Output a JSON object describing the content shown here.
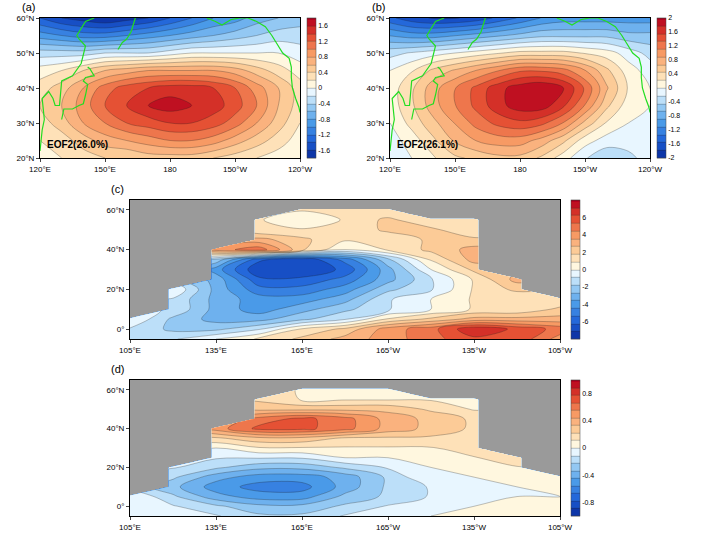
{
  "chart_data": [
    {
      "type": "contour",
      "title": "(a)",
      "annotations": [
        "EOF2(26.0%)"
      ],
      "x": [
        120,
        130,
        140,
        150,
        160,
        170,
        180,
        190,
        200,
        210,
        220,
        230,
        240
      ],
      "y": [
        20,
        25,
        30,
        35,
        40,
        45,
        50,
        55,
        60
      ],
      "z": [
        [
          0.1,
          0.2,
          0.3,
          0.4,
          0.4,
          0.5,
          0.5,
          0.5,
          0.4,
          0.3,
          0.2,
          0.1,
          0.0
        ],
        [
          0.2,
          0.3,
          0.5,
          0.7,
          0.8,
          0.9,
          1.0,
          1.0,
          0.9,
          0.7,
          0.5,
          0.3,
          0.1
        ],
        [
          0.3,
          0.5,
          0.8,
          1.0,
          1.2,
          1.3,
          1.4,
          1.4,
          1.3,
          1.1,
          0.8,
          0.5,
          0.2
        ],
        [
          0.4,
          0.6,
          0.9,
          1.2,
          1.4,
          1.6,
          1.7,
          1.6,
          1.5,
          1.3,
          1.0,
          0.6,
          0.3
        ],
        [
          0.3,
          0.5,
          0.8,
          1.1,
          1.3,
          1.4,
          1.5,
          1.5,
          1.4,
          1.2,
          0.9,
          0.6,
          0.3
        ],
        [
          0.1,
          0.2,
          0.4,
          0.6,
          0.7,
          0.8,
          0.8,
          0.8,
          0.8,
          0.7,
          0.5,
          0.3,
          0.1
        ],
        [
          -0.3,
          -0.3,
          -0.3,
          -0.2,
          -0.2,
          -0.2,
          -0.1,
          0.0,
          0.0,
          0.0,
          0.0,
          0.0,
          -0.1
        ],
        [
          -0.9,
          -1.0,
          -1.1,
          -1.1,
          -1.0,
          -0.9,
          -0.8,
          -0.7,
          -0.6,
          -0.5,
          -0.4,
          -0.3,
          -0.3
        ],
        [
          -1.4,
          -1.6,
          -1.7,
          -1.8,
          -1.7,
          -1.6,
          -1.4,
          -1.2,
          -1.0,
          -0.9,
          -0.7,
          -0.6,
          -0.5
        ]
      ],
      "xlim": [
        120,
        240
      ],
      "xticks": [
        {
          "value": 120,
          "label": "120°E"
        },
        {
          "value": 150,
          "label": "150°E"
        },
        {
          "value": 180,
          "label": "180"
        },
        {
          "value": 210,
          "label": "150°W"
        },
        {
          "value": 240,
          "label": "120°W"
        }
      ],
      "ylim": [
        20,
        60
      ],
      "yticks": [
        {
          "value": 20,
          "label": "20°N"
        },
        {
          "value": 30,
          "label": "30°N"
        },
        {
          "value": 40,
          "label": "40°N"
        },
        {
          "value": 50,
          "label": "50°N"
        },
        {
          "value": 60,
          "label": "60°N"
        }
      ],
      "zlim": [
        -1.8,
        1.8
      ],
      "zticks": [
        -1.6,
        -1.2,
        -0.8,
        -0.4,
        0,
        0.4,
        0.8,
        1.2,
        1.6
      ]
    },
    {
      "type": "contour",
      "title": "(b)",
      "annotations": [
        "EOF2(26.1%)"
      ],
      "x": [
        120,
        130,
        140,
        150,
        160,
        170,
        180,
        190,
        200,
        210,
        220,
        230,
        240
      ],
      "y": [
        20,
        25,
        30,
        35,
        40,
        45,
        50,
        55,
        60
      ],
      "z": [
        [
          -0.2,
          0.0,
          0.2,
          0.4,
          0.5,
          0.6,
          0.6,
          0.4,
          0.1,
          -0.2,
          -0.4,
          -0.3,
          -0.1
        ],
        [
          -0.1,
          0.1,
          0.4,
          0.7,
          0.9,
          1.0,
          1.0,
          0.8,
          0.5,
          0.1,
          -0.1,
          -0.1,
          0.0
        ],
        [
          0.0,
          0.3,
          0.6,
          0.9,
          1.2,
          1.4,
          1.5,
          1.4,
          1.1,
          0.6,
          0.2,
          0.0,
          0.0
        ],
        [
          0.1,
          0.4,
          0.8,
          1.1,
          1.4,
          1.7,
          1.9,
          1.9,
          1.6,
          1.1,
          0.5,
          0.1,
          0.0
        ],
        [
          0.1,
          0.4,
          0.8,
          1.1,
          1.4,
          1.7,
          1.9,
          2.0,
          1.8,
          1.3,
          0.7,
          0.2,
          0.0
        ],
        [
          0.0,
          0.2,
          0.5,
          0.7,
          0.9,
          1.1,
          1.3,
          1.3,
          1.2,
          0.9,
          0.5,
          0.1,
          -0.1
        ],
        [
          -0.3,
          -0.2,
          -0.1,
          0.0,
          0.1,
          0.2,
          0.3,
          0.3,
          0.3,
          0.2,
          0.1,
          -0.1,
          -0.3
        ],
        [
          -0.9,
          -1.0,
          -1.0,
          -0.9,
          -0.8,
          -0.7,
          -0.6,
          -0.5,
          -0.5,
          -0.5,
          -0.5,
          -0.6,
          -0.6
        ],
        [
          -1.5,
          -1.7,
          -1.8,
          -1.8,
          -1.7,
          -1.5,
          -1.3,
          -1.1,
          -1.0,
          -1.0,
          -1.0,
          -1.0,
          -1.0
        ]
      ],
      "xlim": [
        120,
        240
      ],
      "xticks": [
        {
          "value": 120,
          "label": "120°E"
        },
        {
          "value": 150,
          "label": "150°E"
        },
        {
          "value": 180,
          "label": "180"
        },
        {
          "value": 210,
          "label": "150°W"
        },
        {
          "value": 240,
          "label": "120°W"
        }
      ],
      "ylim": [
        20,
        60
      ],
      "yticks": [
        {
          "value": 20,
          "label": "20°N"
        },
        {
          "value": 30,
          "label": "30°N"
        },
        {
          "value": 40,
          "label": "40°N"
        },
        {
          "value": 50,
          "label": "50°N"
        },
        {
          "value": 60,
          "label": "60°N"
        }
      ],
      "zlim": [
        -2,
        2
      ],
      "zticks": [
        -2,
        -1.6,
        -1.2,
        -0.8,
        -0.4,
        0,
        0.4,
        0.8,
        1.2,
        1.6,
        2
      ]
    },
    {
      "type": "contour",
      "title": "(c)",
      "x": [
        105,
        120,
        135,
        150,
        165,
        180,
        195,
        210,
        225,
        240,
        255
      ],
      "y": [
        -5,
        0,
        5,
        10,
        15,
        20,
        25,
        30,
        35,
        40,
        45,
        50,
        55,
        60,
        65
      ],
      "z": [
        [
          -1,
          -1,
          0,
          1,
          2,
          3,
          4,
          5,
          6,
          6,
          4
        ],
        [
          -1,
          -2,
          -2,
          -1,
          1,
          2,
          4,
          5,
          7,
          6,
          5
        ],
        [
          0,
          -2,
          -3,
          -3,
          -2,
          -1,
          1,
          2,
          3,
          3,
          3
        ],
        [
          null,
          -1,
          -3,
          -4,
          -3,
          -2,
          -1,
          0,
          1,
          1,
          2
        ],
        [
          null,
          -1,
          -3,
          -4,
          -4,
          -3,
          -1,
          0,
          1,
          1,
          1
        ],
        [
          null,
          0,
          -3,
          -5,
          -5,
          -4,
          -2,
          -1,
          1,
          2,
          null
        ],
        [
          null,
          null,
          -3,
          -6,
          -6,
          -5,
          -3,
          -1,
          1,
          3,
          null
        ],
        [
          null,
          null,
          -4,
          -7,
          -7,
          -6,
          -3,
          0,
          2,
          null,
          null
        ],
        [
          null,
          null,
          -2,
          -6,
          -7,
          -5,
          -2,
          1,
          3,
          null,
          null
        ],
        [
          null,
          null,
          4,
          5,
          2,
          0,
          1,
          2,
          3,
          null,
          null
        ],
        [
          null,
          null,
          null,
          3,
          2,
          1,
          1,
          2,
          2,
          null,
          null
        ],
        [
          null,
          null,
          null,
          1,
          1,
          1,
          2,
          2,
          1,
          null,
          null
        ],
        [
          null,
          null,
          null,
          1,
          0,
          1,
          2,
          1,
          1,
          null,
          null
        ],
        [
          null,
          null,
          null,
          null,
          1,
          1,
          1,
          null,
          null,
          null,
          null
        ],
        [
          null,
          null,
          null,
          null,
          null,
          null,
          null,
          null,
          null,
          null,
          null
        ]
      ],
      "xlim": [
        105,
        255
      ],
      "xticks": [
        {
          "value": 105,
          "label": "105°E"
        },
        {
          "value": 135,
          "label": "135°E"
        },
        {
          "value": 165,
          "label": "165°E"
        },
        {
          "value": 195,
          "label": "165°W"
        },
        {
          "value": 225,
          "label": "135°W"
        },
        {
          "value": 255,
          "label": "105°W"
        }
      ],
      "ylim": [
        -5,
        65
      ],
      "yticks": [
        {
          "value": 0,
          "label": "0°"
        },
        {
          "value": 20,
          "label": "20°N"
        },
        {
          "value": 40,
          "label": "40°N"
        },
        {
          "value": 60,
          "label": "60°N"
        }
      ],
      "zlim": [
        -8,
        8
      ],
      "zticks": [
        -6,
        -4,
        -2,
        0,
        2,
        4,
        6
      ]
    },
    {
      "type": "contour",
      "title": "(d)",
      "x": [
        105,
        120,
        135,
        150,
        165,
        180,
        195,
        210,
        225,
        240,
        255
      ],
      "y": [
        -5,
        0,
        5,
        10,
        15,
        20,
        25,
        30,
        35,
        40,
        45,
        50,
        55,
        60,
        65
      ],
      "z": [
        [
          0,
          0,
          -0.1,
          -0.2,
          -0.2,
          -0.1,
          0,
          0,
          0.1,
          0.1,
          0
        ],
        [
          0,
          -0.1,
          -0.2,
          -0.3,
          -0.3,
          -0.2,
          -0.1,
          0,
          0,
          0.1,
          0.1
        ],
        [
          0,
          -0.2,
          -0.4,
          -0.5,
          -0.5,
          -0.3,
          -0.2,
          -0.1,
          0,
          0,
          0
        ],
        [
          null,
          -0.3,
          -0.5,
          -0.6,
          -0.6,
          -0.4,
          -0.2,
          -0.1,
          0,
          0,
          0.1
        ],
        [
          null,
          -0.2,
          -0.4,
          -0.5,
          -0.5,
          -0.4,
          -0.2,
          0,
          0,
          0.1,
          0.1
        ],
        [
          null,
          -0.1,
          -0.2,
          -0.3,
          -0.3,
          -0.2,
          -0.1,
          0,
          0.1,
          0.1,
          null
        ],
        [
          null,
          null,
          -0.1,
          -0.1,
          -0.1,
          0,
          0,
          0.1,
          0.1,
          0.2,
          null
        ],
        [
          null,
          null,
          0,
          0.1,
          0.1,
          0.1,
          0.1,
          0.1,
          0.2,
          null,
          null
        ],
        [
          null,
          null,
          0.2,
          0.3,
          0.3,
          0.2,
          0.2,
          0.2,
          0.2,
          null,
          null
        ],
        [
          null,
          null,
          0.5,
          0.7,
          0.7,
          0.6,
          0.4,
          0.3,
          0.2,
          null,
          null
        ],
        [
          null,
          null,
          null,
          0.6,
          0.7,
          0.6,
          0.4,
          0.3,
          0.2,
          null,
          null
        ],
        [
          null,
          null,
          null,
          0.3,
          0.3,
          0.3,
          0.3,
          0.2,
          0.1,
          null,
          null
        ],
        [
          null,
          null,
          null,
          0.2,
          0.1,
          0.1,
          0.1,
          0.1,
          0.1,
          null,
          null
        ],
        [
          null,
          null,
          null,
          null,
          0.1,
          0.1,
          0,
          null,
          null,
          null,
          null
        ],
        [
          null,
          null,
          null,
          null,
          null,
          null,
          null,
          null,
          null,
          null,
          null
        ]
      ],
      "xlim": [
        105,
        255
      ],
      "xticks": [
        {
          "value": 105,
          "label": "105°E"
        },
        {
          "value": 135,
          "label": "135°E"
        },
        {
          "value": 165,
          "label": "165°E"
        },
        {
          "value": 195,
          "label": "165°W"
        },
        {
          "value": 225,
          "label": "135°W"
        },
        {
          "value": 255,
          "label": "105°W"
        }
      ],
      "ylim": [
        -5,
        65
      ],
      "yticks": [
        {
          "value": 0,
          "label": "0°"
        },
        {
          "value": 20,
          "label": "20°N"
        },
        {
          "value": 40,
          "label": "40°N"
        },
        {
          "value": 60,
          "label": "60°N"
        }
      ],
      "zlim": [
        -1,
        1
      ],
      "zticks": [
        -0.8,
        -0.4,
        0,
        0.4,
        0.8
      ]
    }
  ]
}
